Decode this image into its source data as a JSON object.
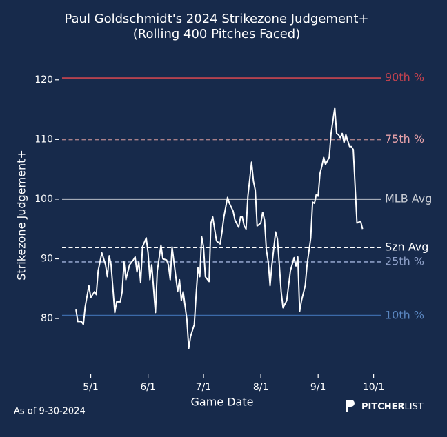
{
  "chart_data": {
    "type": "line",
    "title": "Paul Goldschmidt's 2024 Strikezone Judgement+",
    "subtitle": "(Rolling 400 Pitches Faced)",
    "x_label": "Game Date",
    "y_label": "Strikezone Judgement+",
    "footnote": "As of 9-30-2024",
    "brand": [
      "PITCHER",
      "LIST"
    ],
    "x": [
      "2024-04-23",
      "2024-04-24",
      "2024-04-26",
      "2024-04-27",
      "2024-04-28",
      "2024-04-30",
      "2024-05-01",
      "2024-05-03",
      "2024-05-04",
      "2024-05-05",
      "2024-05-07",
      "2024-05-09",
      "2024-05-10",
      "2024-05-11",
      "2024-05-12",
      "2024-05-14",
      "2024-05-15",
      "2024-05-17",
      "2024-05-18",
      "2024-05-19",
      "2024-05-20",
      "2024-05-22",
      "2024-05-24",
      "2024-05-25",
      "2024-05-26",
      "2024-05-27",
      "2024-05-28",
      "2024-05-29",
      "2024-05-31",
      "2024-06-01",
      "2024-06-02",
      "2024-06-03",
      "2024-06-05",
      "2024-06-06",
      "2024-06-08",
      "2024-06-09",
      "2024-06-11",
      "2024-06-12",
      "2024-06-13",
      "2024-06-14",
      "2024-06-15",
      "2024-06-17",
      "2024-06-18",
      "2024-06-19",
      "2024-06-20",
      "2024-06-22",
      "2024-06-23",
      "2024-06-24",
      "2024-06-26",
      "2024-06-27",
      "2024-06-28",
      "2024-06-29",
      "2024-06-30",
      "2024-07-01",
      "2024-07-02",
      "2024-07-04",
      "2024-07-05",
      "2024-07-06",
      "2024-07-08",
      "2024-07-10",
      "2024-07-11",
      "2024-07-12",
      "2024-07-14",
      "2024-07-15",
      "2024-07-17",
      "2024-07-18",
      "2024-07-20",
      "2024-07-21",
      "2024-07-22",
      "2024-07-23",
      "2024-07-24",
      "2024-07-25",
      "2024-07-27",
      "2024-07-28",
      "2024-07-29",
      "2024-07-30",
      "2024-08-01",
      "2024-08-02",
      "2024-08-03",
      "2024-08-04",
      "2024-08-05",
      "2024-08-06",
      "2024-08-07",
      "2024-08-09",
      "2024-08-10",
      "2024-08-11",
      "2024-08-12",
      "2024-08-13",
      "2024-08-15",
      "2024-08-16",
      "2024-08-17",
      "2024-08-19",
      "2024-08-20",
      "2024-08-21",
      "2024-08-22",
      "2024-08-23",
      "2024-08-25",
      "2024-08-26",
      "2024-08-28",
      "2024-08-29",
      "2024-08-30",
      "2024-08-31",
      "2024-09-01",
      "2024-09-02",
      "2024-09-03",
      "2024-09-04",
      "2024-09-05",
      "2024-09-07",
      "2024-09-08",
      "2024-09-10",
      "2024-09-11",
      "2024-09-12",
      "2024-09-13",
      "2024-09-14",
      "2024-09-15",
      "2024-09-16",
      "2024-09-18",
      "2024-09-19",
      "2024-09-20",
      "2024-09-22",
      "2024-09-24",
      "2024-09-25"
    ],
    "series": [
      {
        "name": "Strikezone Judgement+",
        "color": "#ffffff",
        "values": [
          81.5,
          79.5,
          79.5,
          79,
          82,
          85.5,
          83.5,
          84.5,
          84,
          88,
          91,
          89,
          87,
          90.5,
          89,
          81,
          82.8,
          82.8,
          84.5,
          89.5,
          86.5,
          89,
          89.8,
          90.3,
          87.8,
          89.5,
          86,
          92,
          93.5,
          91,
          86.5,
          89,
          81,
          88,
          92.3,
          90,
          89.8,
          89,
          86.5,
          92,
          89.5,
          84.5,
          86.5,
          83,
          84.5,
          79.8,
          75,
          77,
          79,
          84,
          88.5,
          87,
          93.7,
          92,
          87,
          86.2,
          96,
          97,
          93,
          92.5,
          94.5,
          97,
          100.3,
          99.3,
          98,
          96.5,
          95.3,
          97,
          97,
          95.5,
          95,
          100.5,
          106.2,
          103,
          101.5,
          95.5,
          96,
          97.8,
          96.5,
          91.5,
          89.5,
          85.5,
          89,
          94.5,
          93.3,
          89,
          84.5,
          81.8,
          83,
          85.5,
          88,
          90.2,
          88.8,
          90.3,
          81.2,
          83,
          85.5,
          89,
          93.5,
          99.5,
          99.3,
          100.8,
          100.5,
          104.3,
          105.5,
          107,
          105.8,
          107,
          111,
          115.3,
          111,
          110.8,
          110.3,
          111,
          109.5,
          110.8,
          108.8,
          108.8,
          108.3,
          96,
          96.3,
          95
        ]
      }
    ],
    "reference_lines": [
      {
        "label": "90th %",
        "value": 120.3,
        "color": "#b5424f",
        "label_color": "#c2424f",
        "dash": false
      },
      {
        "label": "75th %",
        "value": 110,
        "color": "#a98089",
        "label_color": "#e7a2aa",
        "dash": true
      },
      {
        "label": "MLB Avg",
        "value": 100,
        "color": "#b9bdc6",
        "label_color": "#c9cdd5",
        "dash": false
      },
      {
        "label": "Szn Avg",
        "value": 91.9,
        "color": "#ffffff",
        "label_color": "#ffffff",
        "dash": true
      },
      {
        "label": "25th %",
        "value": 89.5,
        "color": "#7d8fb6",
        "label_color": "#8ea0c8",
        "dash": true
      },
      {
        "label": "10th %",
        "value": 80.5,
        "color": "#3c6aa9",
        "label_color": "#5b87c1",
        "dash": false
      }
    ],
    "xlim": [
      "2024-04-14",
      "2024-10-06"
    ],
    "xticks": [
      {
        "value": "2024-05-01",
        "label": "5/1"
      },
      {
        "value": "2024-06-01",
        "label": "6/1"
      },
      {
        "value": "2024-07-01",
        "label": "7/1"
      },
      {
        "value": "2024-08-01",
        "label": "8/1"
      },
      {
        "value": "2024-09-01",
        "label": "9/1"
      },
      {
        "value": "2024-10-01",
        "label": "10/1"
      }
    ],
    "ylim": [
      71,
      122.4
    ],
    "yticks": [
      80,
      90,
      100,
      110,
      120
    ]
  }
}
